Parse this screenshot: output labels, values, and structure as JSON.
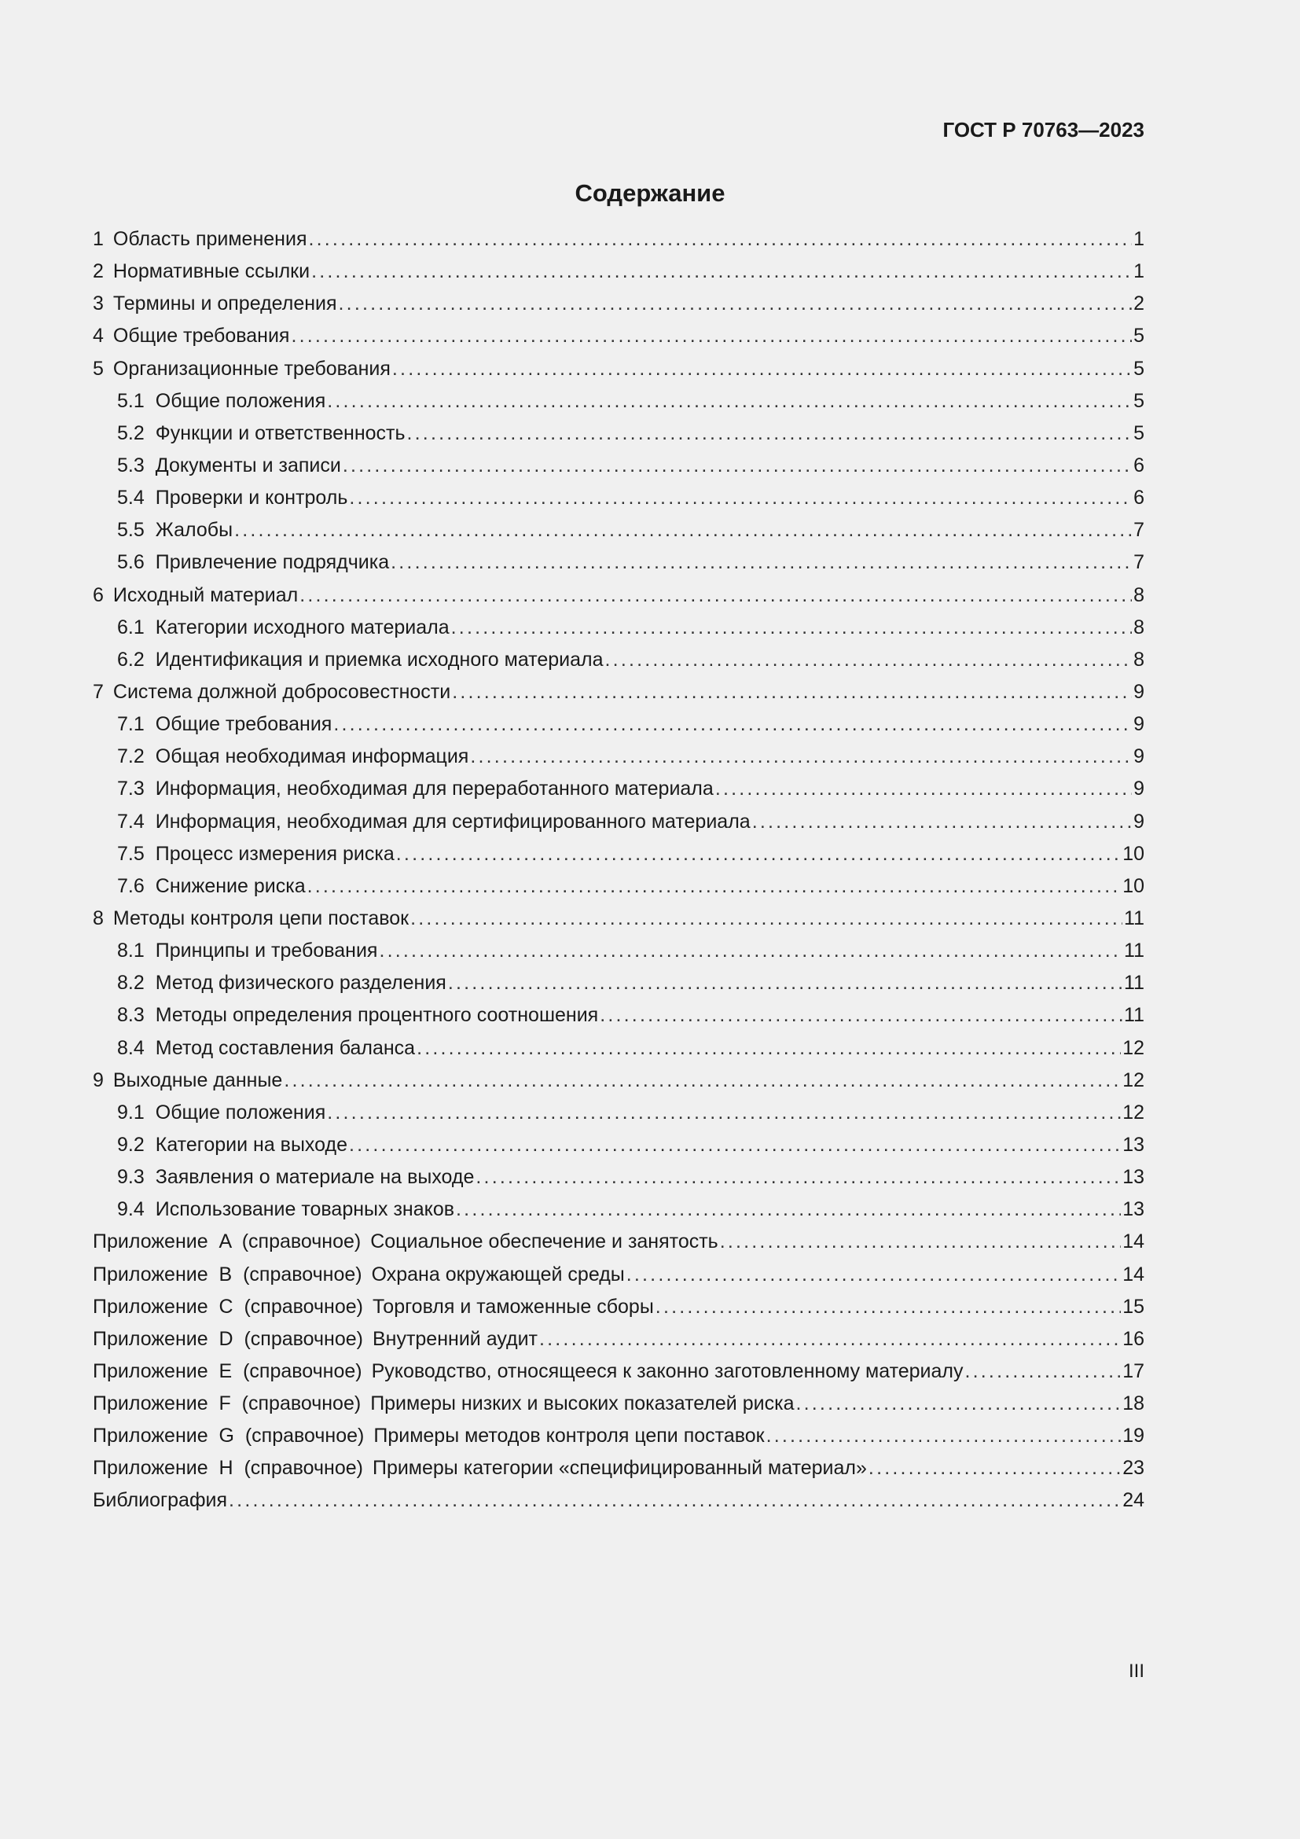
{
  "header": {
    "doc_code": "ГОСТ Р 70763—2023"
  },
  "title": "Содержание",
  "toc": [
    {
      "num": "1",
      "title": "Область применения",
      "page": "1",
      "level": 1
    },
    {
      "num": "2",
      "title": "Нормативные ссылки",
      "page": "1",
      "level": 1
    },
    {
      "num": "3",
      "title": "Термины и определения",
      "page": "2",
      "level": 1
    },
    {
      "num": "4",
      "title": "Общие требования",
      "page": "5",
      "level": 1
    },
    {
      "num": "5",
      "title": "Организационные требования",
      "page": "5",
      "level": 1
    },
    {
      "num": "5.1",
      "title": "Общие положения",
      "page": "5",
      "level": 2
    },
    {
      "num": "5.2",
      "title": "Функции и ответственность",
      "page": "5",
      "level": 2
    },
    {
      "num": "5.3",
      "title": "Документы и записи",
      "page": "6",
      "level": 2
    },
    {
      "num": "5.4",
      "title": "Проверки и контроль",
      "page": "6",
      "level": 2
    },
    {
      "num": "5.5",
      "title": "Жалобы",
      "page": "7",
      "level": 2
    },
    {
      "num": "5.6",
      "title": "Привлечение подрядчика",
      "page": "7",
      "level": 2
    },
    {
      "num": "6",
      "title": "Исходный материал",
      "page": "8",
      "level": 1
    },
    {
      "num": "6.1",
      "title": "Категории исходного материала",
      "page": "8",
      "level": 2
    },
    {
      "num": "6.2",
      "title": "Идентификация и приемка исходного материала",
      "page": "8",
      "level": 2
    },
    {
      "num": "7",
      "title": "Система должной добросовестности",
      "page": "9",
      "level": 1
    },
    {
      "num": "7.1",
      "title": "Общие требования",
      "page": "9",
      "level": 2
    },
    {
      "num": "7.2",
      "title": "Общая необходимая информация",
      "page": "9",
      "level": 2
    },
    {
      "num": "7.3",
      "title": "Информация, необходимая для переработанного материала",
      "page": "9",
      "level": 2
    },
    {
      "num": "7.4",
      "title": "Информация, необходимая для сертифицированного материала",
      "page": "9",
      "level": 2
    },
    {
      "num": "7.5",
      "title": "Процесс измерения риска",
      "page": "10",
      "level": 2
    },
    {
      "num": "7.6",
      "title": "Снижение риска",
      "page": "10",
      "level": 2
    },
    {
      "num": "8",
      "title": "Методы контроля цепи поставок",
      "page": "11",
      "level": 1
    },
    {
      "num": "8.1",
      "title": "Принципы и требования",
      "page": "11",
      "level": 2
    },
    {
      "num": "8.2",
      "title": "Метод физического разделения",
      "page": "11",
      "level": 2
    },
    {
      "num": "8.3",
      "title": "Методы определения процентного соотношения",
      "page": "11",
      "level": 2
    },
    {
      "num": "8.4",
      "title": "Метод составления баланса",
      "page": "12",
      "level": 2
    },
    {
      "num": "9",
      "title": "Выходные данные",
      "page": "12",
      "level": 1
    },
    {
      "num": "9.1",
      "title": "Общие положения",
      "page": "12",
      "level": 2
    },
    {
      "num": "9.2",
      "title": "Категории на выходе",
      "page": "13",
      "level": 2
    },
    {
      "num": "9.3",
      "title": "Заявления о материале на выходе",
      "page": "13",
      "level": 2
    },
    {
      "num": "9.4",
      "title": "Использование товарных знаков",
      "page": "13",
      "level": 2
    },
    {
      "num": "Приложение  A  (справочное)",
      "title": "Социальное обеспечение и занятость",
      "page": "14",
      "level": 1
    },
    {
      "num": "Приложение  B  (справочное)",
      "title": "Охрана окружающей среды",
      "page": "14",
      "level": 1
    },
    {
      "num": "Приложение  C  (справочное)",
      "title": "Торговля и таможенные сборы",
      "page": "15",
      "level": 1
    },
    {
      "num": "Приложение  D  (справочное)",
      "title": "Внутренний аудит",
      "page": "16",
      "level": 1
    },
    {
      "num": "Приложение  E  (справочное)",
      "title": "Руководство, относящееся к законно заготовленному материалу",
      "page": "17",
      "level": 1
    },
    {
      "num": "Приложение  F  (справочное)",
      "title": "Примеры низких и высоких показателей риска",
      "page": "18",
      "level": 1
    },
    {
      "num": "Приложение  G  (справочное)",
      "title": "Примеры методов контроля цепи поставок",
      "page": "19",
      "level": 1
    },
    {
      "num": "Приложение  H  (справочное)",
      "title": "Примеры категории «специфицированный материал»",
      "page": "23",
      "level": 1
    },
    {
      "num": "",
      "title": "Библиография",
      "page": "24",
      "level": 1
    }
  ],
  "footer": {
    "page_number": "III"
  }
}
